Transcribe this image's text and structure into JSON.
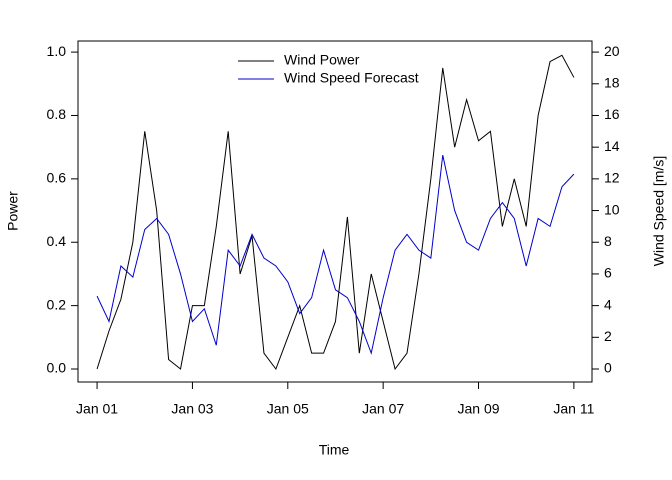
{
  "chart_data": {
    "type": "line",
    "xlabel": "Time",
    "ylabel": "Power",
    "y2label": "Wind Speed [m/s]",
    "x": [
      0,
      0.25,
      0.5,
      0.75,
      1,
      1.25,
      1.5,
      1.75,
      2,
      2.25,
      2.5,
      2.75,
      3,
      3.25,
      3.5,
      3.75,
      4,
      4.25,
      4.5,
      4.75,
      5,
      5.25,
      5.5,
      5.75,
      6,
      6.25,
      6.5,
      6.75,
      7,
      7.25,
      7.5,
      7.75,
      8,
      8.25,
      8.5,
      8.75,
      9,
      9.25,
      9.5,
      9.75,
      10
    ],
    "series": [
      {
        "name": "Wind Power",
        "color": "#000000",
        "values": [
          0.0,
          0.12,
          0.22,
          0.4,
          0.75,
          0.5,
          0.03,
          0.0,
          0.2,
          0.2,
          0.45,
          0.75,
          0.3,
          0.42,
          0.05,
          0.0,
          0.1,
          0.2,
          0.05,
          0.05,
          0.15,
          0.48,
          0.05,
          0.3,
          0.15,
          0.0,
          0.05,
          0.3,
          0.6,
          0.95,
          0.7,
          0.85,
          0.72,
          0.75,
          0.45,
          0.6,
          0.45,
          0.8,
          0.97,
          0.99,
          0.92
        ]
      },
      {
        "name": "Wind Speed Forecast",
        "color": "#0000cd",
        "axis": "y2",
        "values": [
          4.6,
          3.0,
          6.5,
          5.8,
          8.8,
          9.5,
          8.5,
          6.0,
          3.0,
          3.8,
          1.5,
          7.5,
          6.5,
          8.5,
          7.0,
          6.5,
          5.5,
          3.5,
          4.5,
          7.5,
          5.0,
          4.5,
          3.0,
          1.0,
          4.5,
          7.5,
          8.5,
          7.5,
          7.0,
          13.5,
          10.0,
          8.0,
          7.5,
          9.5,
          10.5,
          9.5,
          6.5,
          9.5,
          9.0,
          11.5,
          12.3
        ]
      }
    ],
    "xlim": [
      -0.4,
      10.38
    ],
    "xticks": [
      {
        "value": 0,
        "label": "Jan 01"
      },
      {
        "value": 2,
        "label": "Jan 03"
      },
      {
        "value": 4,
        "label": "Jan 05"
      },
      {
        "value": 6,
        "label": "Jan 07"
      },
      {
        "value": 8,
        "label": "Jan 09"
      },
      {
        "value": 10,
        "label": "Jan 11"
      }
    ],
    "ylim": [
      -0.041,
      1.035
    ],
    "yticks": [
      {
        "value": 0,
        "label": "0.0"
      },
      0.2,
      0.4,
      0.6,
      0.8,
      {
        "value": 1,
        "label": "1.0"
      }
    ],
    "y2lim": [
      -0.82,
      20.7
    ],
    "y2ticks": [
      0,
      2,
      4,
      6,
      8,
      10,
      12,
      14,
      16,
      18,
      20
    ],
    "legend": "top"
  }
}
